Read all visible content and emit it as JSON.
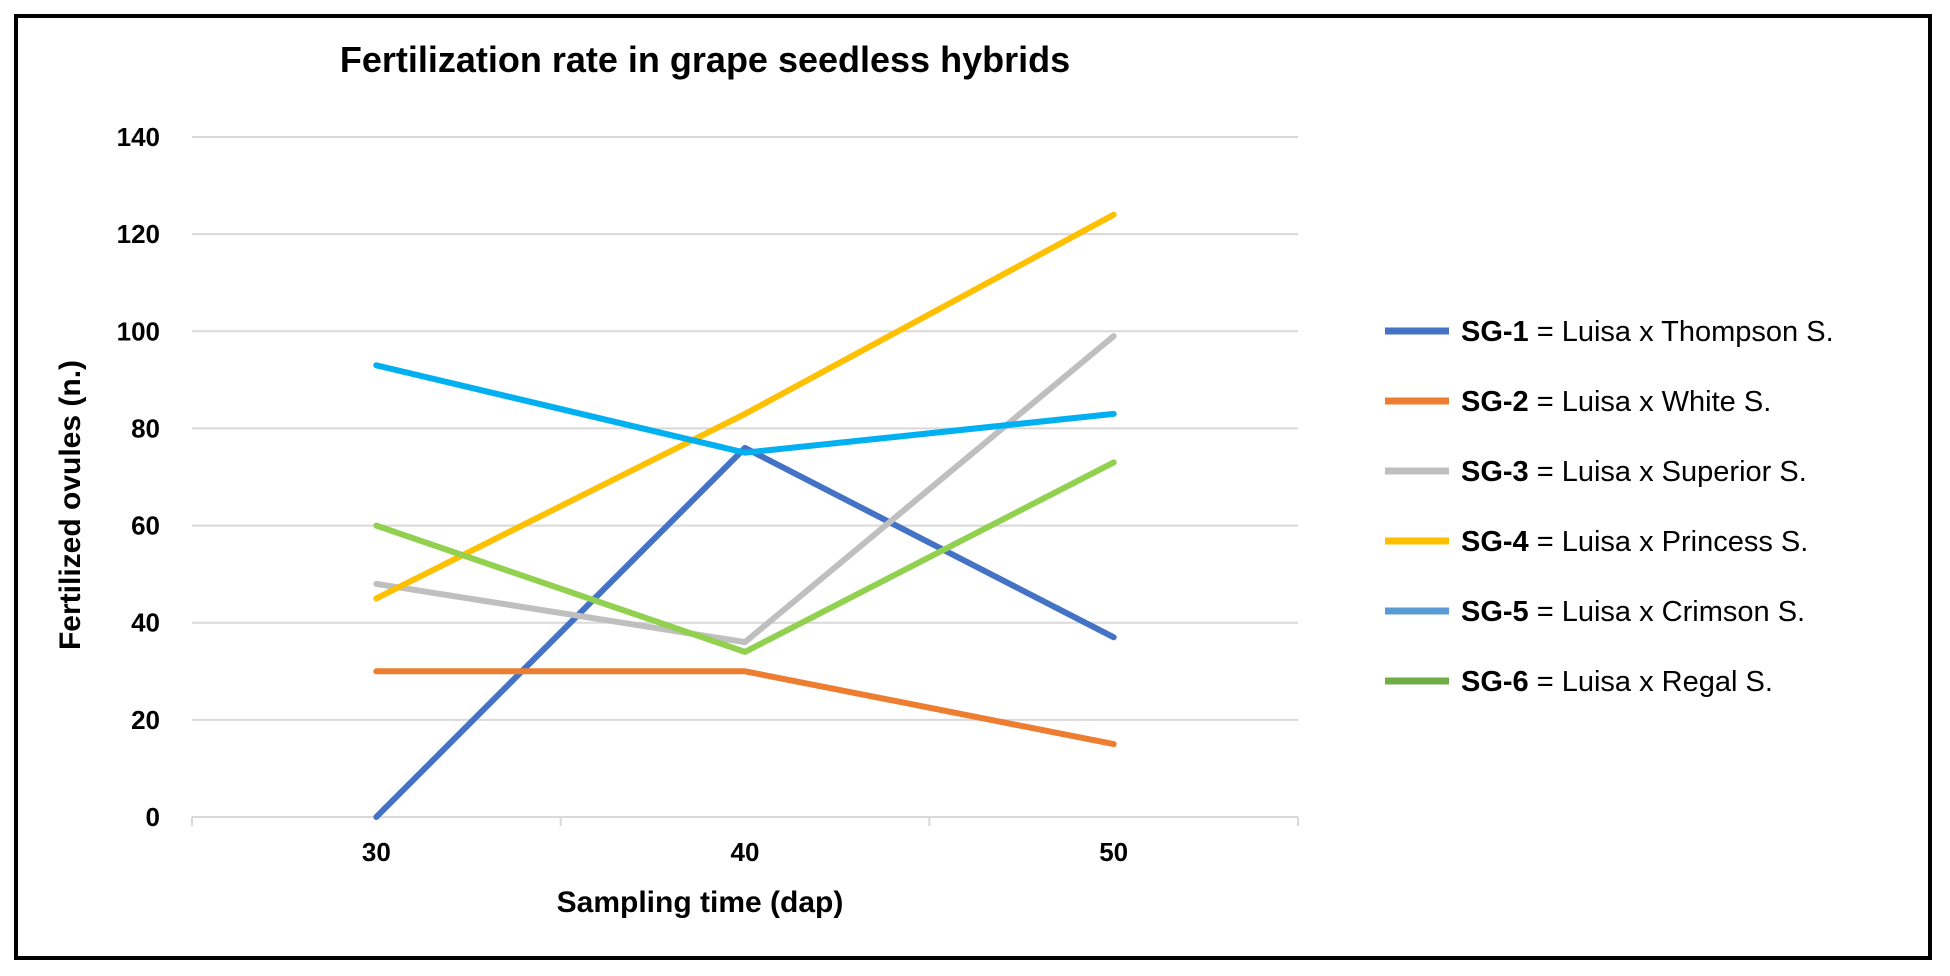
{
  "chart_data": {
    "type": "line",
    "title": "Fertilization rate in grape seedless hybrids",
    "xlabel": "Sampling time (dap)",
    "ylabel": "Fertilized ovules (n.)",
    "x": [
      30,
      40,
      50
    ],
    "x_tick_labels": [
      "30",
      "40",
      "50"
    ],
    "ylim": [
      0,
      140
    ],
    "y_ticks": [
      0,
      20,
      40,
      60,
      80,
      100,
      120,
      140
    ],
    "grid": true,
    "legend_position": "right",
    "series": [
      {
        "name": "SG-1",
        "desc": " = Luisa x Thompson S.",
        "color": "#4472C4",
        "values": [
          0,
          76,
          37
        ]
      },
      {
        "name": "SG-2",
        "desc": " = Luisa x White S.",
        "color": "#ED7D31",
        "values": [
          30,
          30,
          15
        ]
      },
      {
        "name": "SG-3",
        "desc": " = Luisa x Superior S.",
        "color": "#BFBFBF",
        "values": [
          48,
          36,
          99
        ]
      },
      {
        "name": "SG-4",
        "desc": " = Luisa x Princess S.",
        "color": "#FFC000",
        "values": [
          45,
          83,
          124
        ]
      },
      {
        "name": "SG-5",
        "desc": " = Luisa x Crimson S.",
        "color": "#00B0F0",
        "legend_color": "#5B9BD5",
        "values": [
          93,
          75,
          83
        ]
      },
      {
        "name": "SG-6",
        "desc": " = Luisa x Regal S.",
        "color": "#92D050",
        "legend_color": "#70AD47",
        "values": [
          60,
          34,
          73
        ]
      }
    ]
  }
}
